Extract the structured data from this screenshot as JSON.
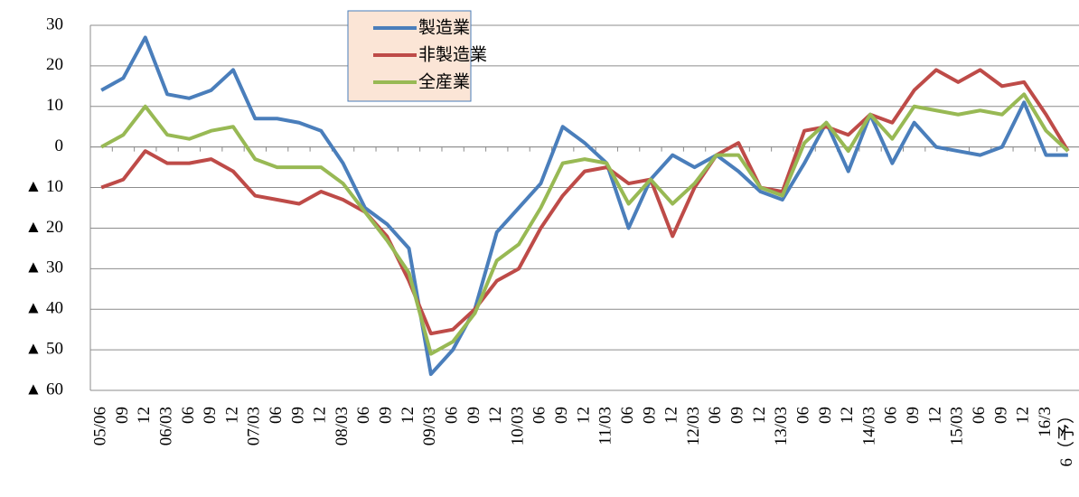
{
  "chart_data": {
    "type": "line",
    "categories": [
      "05/06",
      "09",
      "12",
      "06/03",
      "06",
      "09",
      "12",
      "07/03",
      "06",
      "09",
      "12",
      "08/03",
      "06",
      "09",
      "12",
      "09/03",
      "06",
      "09",
      "12",
      "10/03",
      "06",
      "09",
      "12",
      "11/03",
      "06",
      "09",
      "12",
      "12/03",
      "06",
      "09",
      "12",
      "13/03",
      "06",
      "09",
      "12",
      "14/03",
      "06",
      "09",
      "12",
      "15/03",
      "06",
      "09",
      "12",
      "16/3",
      "6（予）"
    ],
    "series": [
      {
        "name": "製造業",
        "color": "#4a7ebb",
        "values": [
          14,
          17,
          27,
          13,
          12,
          14,
          19,
          7,
          7,
          6,
          4,
          -4,
          -15,
          -19,
          -25,
          -56,
          -50,
          -40,
          -21,
          -15,
          -9,
          5,
          1,
          -4,
          -20,
          -8,
          -2,
          -5,
          -2,
          -6,
          -11,
          -13,
          -4,
          6,
          -6,
          8,
          -4,
          6,
          0,
          -1,
          -2,
          0,
          11,
          -2,
          -2
        ]
      },
      {
        "name": "非製造業",
        "color": "#be4b48",
        "values": [
          -10,
          -8,
          -1,
          -4,
          -4,
          -3,
          -6,
          -12,
          -13,
          -14,
          -11,
          -13,
          -16,
          -22,
          -33,
          -46,
          -45,
          -40,
          -33,
          -30,
          -20,
          -12,
          -6,
          -5,
          -9,
          -8,
          -22,
          -10,
          -2,
          1,
          -10,
          -11,
          4,
          5,
          3,
          8,
          6,
          14,
          19,
          16,
          19,
          15,
          16,
          8,
          -1
        ]
      },
      {
        "name": "全産業",
        "color": "#98b954",
        "values": [
          0,
          3,
          10,
          3,
          2,
          4,
          5,
          -3,
          -5,
          -5,
          -5,
          -9,
          -16,
          -23,
          -31,
          -51,
          -48,
          -41,
          -28,
          -24,
          -15,
          -4,
          -3,
          -4,
          -14,
          -8,
          -14,
          -9,
          -2,
          -2,
          -10,
          -12,
          1,
          6,
          -1,
          8,
          2,
          10,
          9,
          8,
          9,
          8,
          13,
          4,
          -1
        ]
      }
    ],
    "ylim": [
      -60,
      30
    ],
    "yticks": [
      {
        "value": -60,
        "label": "▲ 60"
      },
      {
        "value": -50,
        "label": "▲ 50"
      },
      {
        "value": -40,
        "label": "▲ 40"
      },
      {
        "value": -30,
        "label": "▲ 30"
      },
      {
        "value": -20,
        "label": "▲ 20"
      },
      {
        "value": -10,
        "label": "▲ 10"
      },
      0,
      10,
      20,
      30
    ],
    "grid": true,
    "legend": "upper center"
  }
}
